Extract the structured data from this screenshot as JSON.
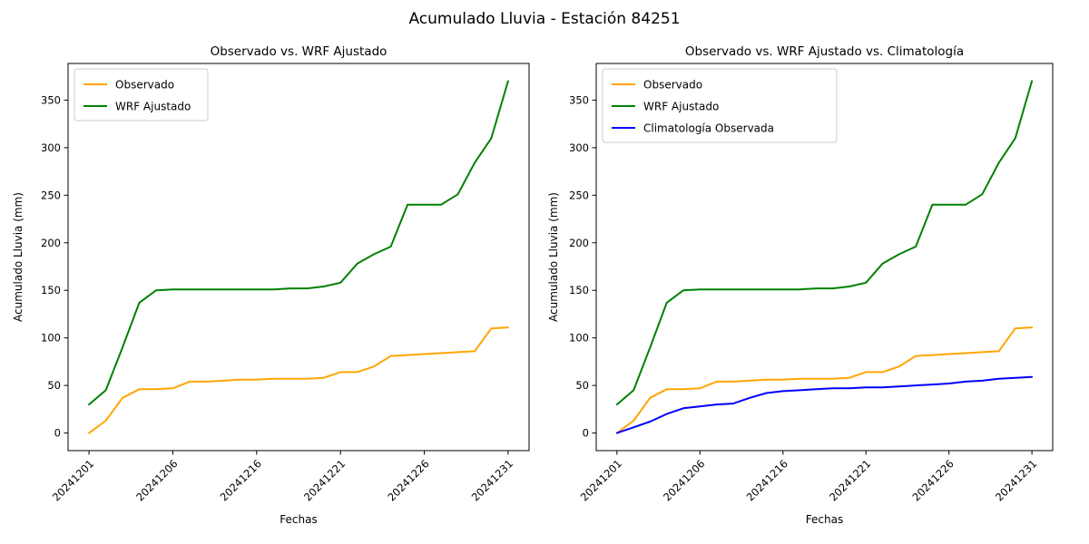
{
  "figure": {
    "title": "Acumulado Lluvia - Estación 84251",
    "background_color": "#ffffff",
    "text_color": "#000000"
  },
  "chart_data": [
    {
      "type": "line",
      "title": "Observado vs. WRF Ajustado",
      "xlabel": "Fechas",
      "ylabel": "Acumulado Lluvia (mm)",
      "categories": [
        "20241201",
        "20241202",
        "20241203",
        "20241204",
        "20241205",
        "20241206",
        "20241207",
        "20241208",
        "20241209",
        "20241210",
        "20241216",
        "20241217",
        "20241218",
        "20241219",
        "20241220",
        "20241221",
        "20241222",
        "20241223",
        "20241224",
        "20241225",
        "20241226",
        "20241227",
        "20241228",
        "20241229",
        "20241230",
        "20241231"
      ],
      "xtick_every": 5,
      "xtick_labels_shown": [
        "20241201",
        "20241206",
        "20241216",
        "20241221",
        "20241226",
        "20241231"
      ],
      "ytick_values": [
        0,
        50,
        100,
        150,
        200,
        250,
        300,
        350
      ],
      "ylim": [
        -18.5,
        388.5
      ],
      "grid": false,
      "legend_position": "upper left",
      "series": [
        {
          "name": "Observado",
          "color": "#FFA500",
          "values": [
            0,
            13,
            37,
            46,
            46,
            47,
            54,
            54,
            55,
            56,
            56,
            57,
            57,
            57,
            58,
            64,
            64,
            70,
            81,
            82,
            83,
            84,
            85,
            86,
            110,
            111
          ]
        },
        {
          "name": "WRF Ajustado",
          "color": "#008000",
          "values": [
            30,
            45,
            90,
            137,
            150,
            151,
            151,
            151,
            151,
            151,
            151,
            151,
            152,
            152,
            154,
            158,
            178,
            188,
            196,
            240,
            240,
            240,
            251,
            284,
            310,
            370
          ]
        }
      ]
    },
    {
      "type": "line",
      "title": "Observado vs. WRF Ajustado vs. Climatología",
      "xlabel": "Fechas",
      "ylabel": "Acumulado Lluvia (mm)",
      "categories": [
        "20241201",
        "20241202",
        "20241203",
        "20241204",
        "20241205",
        "20241206",
        "20241207",
        "20241208",
        "20241209",
        "20241210",
        "20241216",
        "20241217",
        "20241218",
        "20241219",
        "20241220",
        "20241221",
        "20241222",
        "20241223",
        "20241224",
        "20241225",
        "20241226",
        "20241227",
        "20241228",
        "20241229",
        "20241230",
        "20241231"
      ],
      "xtick_every": 5,
      "xtick_labels_shown": [
        "20241201",
        "20241206",
        "20241216",
        "20241221",
        "20241226",
        "20241231"
      ],
      "ytick_values": [
        0,
        50,
        100,
        150,
        200,
        250,
        300,
        350
      ],
      "ylim": [
        -18.5,
        388.5
      ],
      "grid": false,
      "legend_position": "upper left",
      "series": [
        {
          "name": "Observado",
          "color": "#FFA500",
          "values": [
            0,
            13,
            37,
            46,
            46,
            47,
            54,
            54,
            55,
            56,
            56,
            57,
            57,
            57,
            58,
            64,
            64,
            70,
            81,
            82,
            83,
            84,
            85,
            86,
            110,
            111
          ]
        },
        {
          "name": "WRF Ajustado",
          "color": "#008000",
          "values": [
            30,
            45,
            90,
            137,
            150,
            151,
            151,
            151,
            151,
            151,
            151,
            151,
            152,
            152,
            154,
            158,
            178,
            188,
            196,
            240,
            240,
            240,
            251,
            284,
            310,
            370
          ]
        },
        {
          "name": "Climatología Observada",
          "color": "#0000FF",
          "values": [
            0,
            6,
            12,
            20,
            26,
            28,
            30,
            31,
            37,
            42,
            44,
            45,
            46,
            47,
            47,
            48,
            48,
            49,
            50,
            51,
            52,
            54,
            55,
            57,
            58,
            59
          ]
        }
      ]
    }
  ]
}
